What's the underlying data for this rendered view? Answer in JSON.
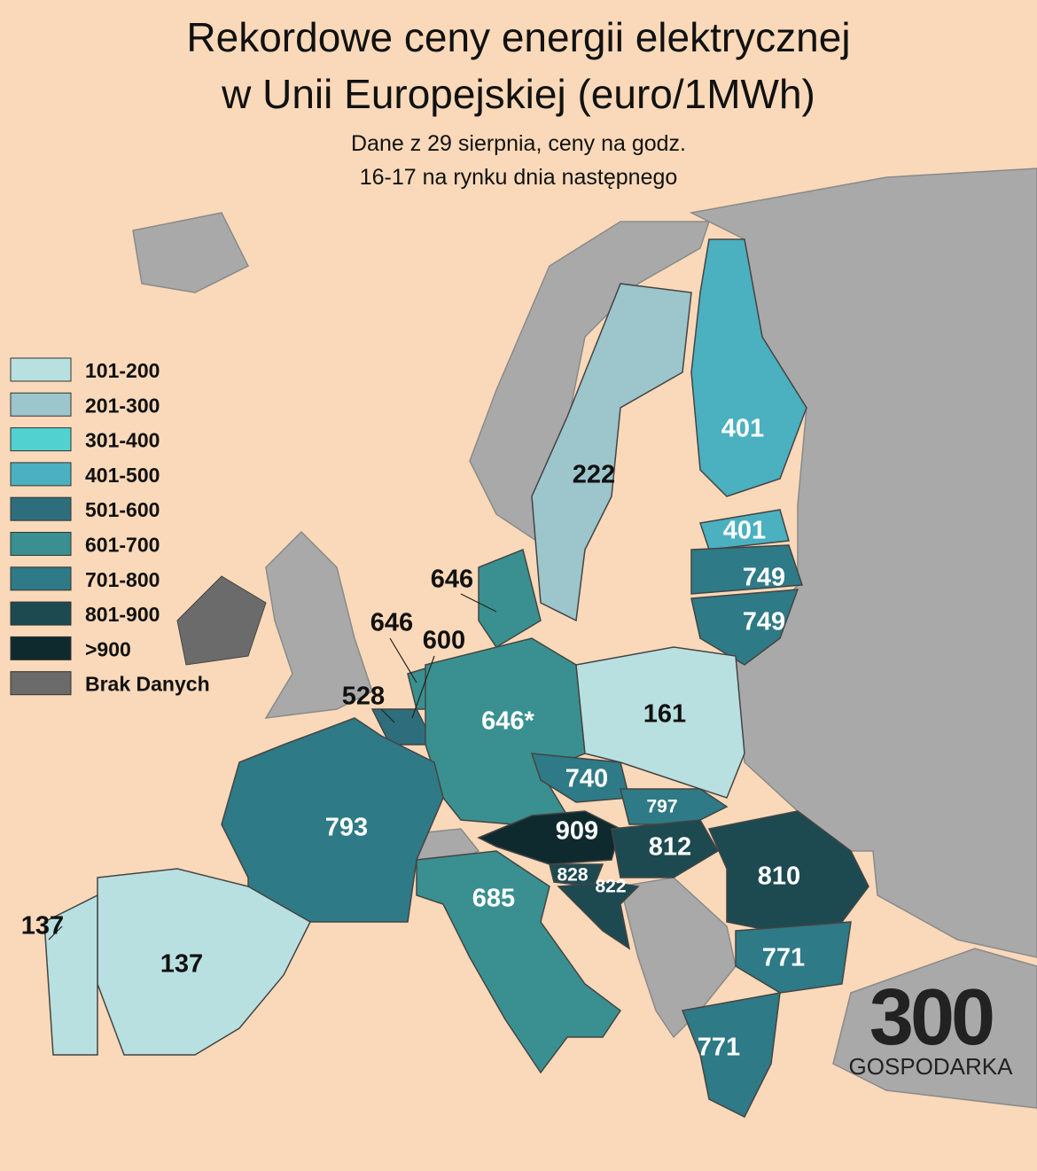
{
  "title": [
    "Rekordowe ceny energii elektrycznej",
    "w Unii Europejskiej (euro/1MWh)"
  ],
  "subtitle": [
    "Dane z 29 sierpnia, ceny na godz.",
    "16-17 na rynku dnia następnego"
  ],
  "legend": [
    {
      "label": "101-200",
      "color": "#b9e0e0"
    },
    {
      "label": "201-300",
      "color": "#9cc5cc"
    },
    {
      "label": "301-400",
      "color": "#52d1d1"
    },
    {
      "label": "401-500",
      "color": "#4bb0c0"
    },
    {
      "label": "501-600",
      "color": "#2e6e7c"
    },
    {
      "label": "601-700",
      "color": "#3a9090"
    },
    {
      "label": "701-800",
      "color": "#2e7a86"
    },
    {
      "label": "801-900",
      "color": "#1c4a50"
    },
    {
      "label": ">900",
      "color": "#0e2a2e"
    },
    {
      "label": "Brak Danych",
      "color": "#6b6b6b"
    }
  ],
  "regions": [
    {
      "label": "401",
      "color": "#4bb0c0"
    },
    {
      "label": "401",
      "color": "#4bb0c0"
    },
    {
      "label": "749",
      "color": "#2e7a86"
    },
    {
      "label": "749",
      "color": "#2e7a86"
    },
    {
      "label": "222",
      "color": "#9cc5cc"
    },
    {
      "label": "646",
      "color": "#3a9090"
    },
    {
      "label": "646",
      "color": "#3a9090"
    },
    {
      "label": "600",
      "color": "#2e6e7c"
    },
    {
      "label": "528",
      "color": "#2e6e7c"
    },
    {
      "label": "646*",
      "color": "#3a9090"
    },
    {
      "label": "161",
      "color": "#b9e0e0"
    },
    {
      "label": "740",
      "color": "#2e7a86"
    },
    {
      "label": "797",
      "color": "#2e7a86"
    },
    {
      "label": "909",
      "color": "#0e2a2e"
    },
    {
      "label": "812",
      "color": "#1c4a50"
    },
    {
      "label": "810",
      "color": "#1c4a50"
    },
    {
      "label": "828",
      "color": "#1c4a50"
    },
    {
      "label": "822",
      "color": "#1c4a50"
    },
    {
      "label": "685",
      "color": "#3a9090"
    },
    {
      "label": "793",
      "color": "#2e7a86"
    },
    {
      "label": "137",
      "color": "#b9e0e0"
    },
    {
      "label": "137",
      "color": "#b9e0e0"
    },
    {
      "label": "771",
      "color": "#2e7a86"
    },
    {
      "label": "771",
      "color": "#2e7a86"
    }
  ],
  "logo": {
    "number": "300",
    "name": "GOSPODARKA"
  }
}
